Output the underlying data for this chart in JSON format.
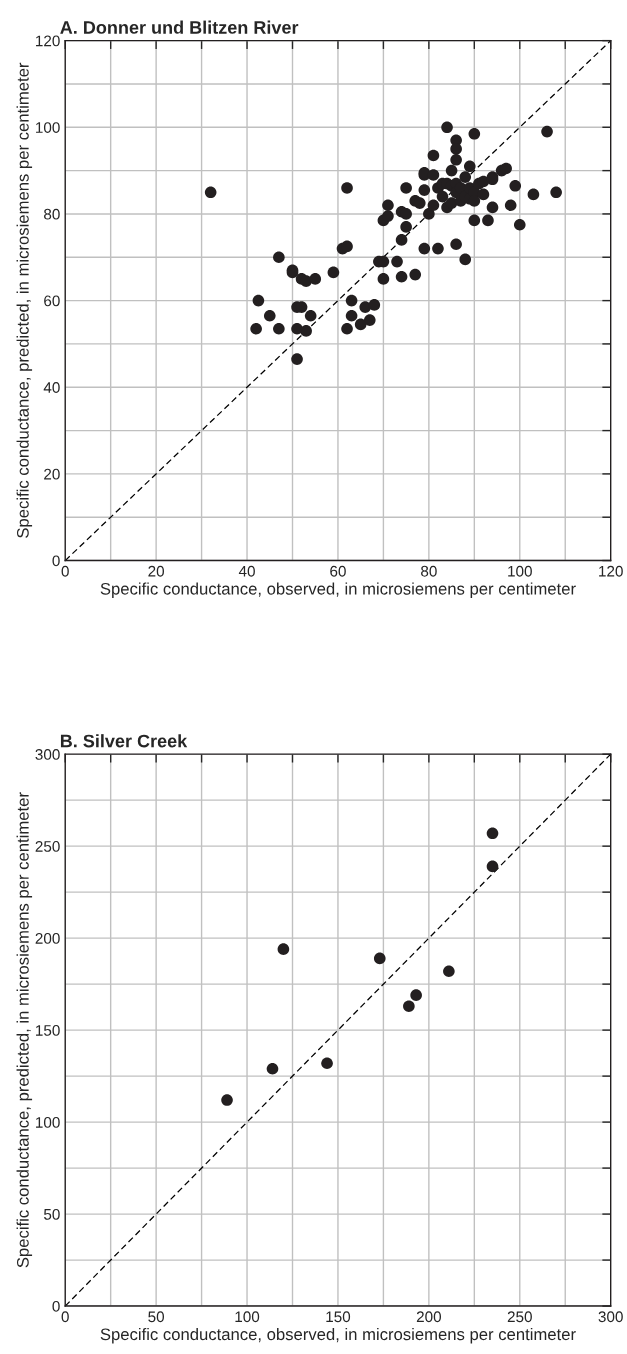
{
  "chart_data": [
    {
      "type": "scatter",
      "title": "A. Donner und Blitzen River",
      "xlabel": "Specific conductance, observed, in microsiemens per centimeter",
      "ylabel": "Specific conductance, predicted, in microsiemens per centimeter",
      "xlim": [
        0,
        120
      ],
      "ylim": [
        0,
        120
      ],
      "xticks": [
        0,
        {
          "value": 10,
          "label": null
        },
        20,
        {
          "value": 30,
          "label": null
        },
        40,
        {
          "value": 50,
          "label": null
        },
        60,
        {
          "value": 70,
          "label": null
        },
        80,
        {
          "value": 90,
          "label": null
        },
        100,
        {
          "value": 110,
          "label": null
        },
        120
      ],
      "yticks": [
        0,
        {
          "value": 10,
          "label": null
        },
        20,
        {
          "value": 30,
          "label": null
        },
        40,
        {
          "value": 50,
          "label": null
        },
        60,
        {
          "value": 70,
          "label": null
        },
        80,
        {
          "value": 90,
          "label": null
        },
        100,
        {
          "value": 110,
          "label": null
        },
        120
      ],
      "grid": true,
      "marker": "circle",
      "legend": false,
      "series": [
        {
          "color": "#231f20",
          "x": [
            32,
            42,
            42.5,
            45,
            47,
            47,
            50,
            50,
            51,
            51,
            51,
            52,
            52,
            53,
            53,
            54,
            55,
            59,
            61,
            62,
            62,
            62,
            63,
            63,
            65,
            66,
            67,
            68,
            69,
            70,
            70,
            70,
            71,
            71,
            73,
            74,
            74,
            74,
            75,
            75,
            75,
            77,
            77,
            78,
            79,
            79,
            79,
            79,
            80,
            81,
            81,
            81,
            82,
            82,
            83,
            83,
            84,
            84,
            84,
            85,
            85,
            85,
            86,
            86,
            86,
            86,
            86,
            86,
            87,
            87,
            88,
            88,
            88,
            89,
            89,
            89,
            90,
            90,
            90,
            90,
            91,
            92,
            92,
            93,
            94,
            94,
            94,
            96,
            97,
            98,
            99,
            100,
            103,
            106,
            108
          ],
          "values": [
            85,
            53.5,
            60,
            56.5,
            53.5,
            70,
            67,
            66.5,
            58.5,
            53.5,
            46.5,
            65,
            58.5,
            53,
            64.5,
            56.5,
            65,
            66.5,
            72,
            72.5,
            86,
            53.5,
            60,
            56.5,
            54.5,
            58.5,
            55.5,
            59,
            69,
            69,
            65,
            78.5,
            79.5,
            82,
            69,
            74,
            65.5,
            80.5,
            80,
            77,
            86,
            66,
            83,
            82.5,
            72,
            85.5,
            89,
            89.5,
            80,
            93.5,
            82,
            89,
            72,
            86,
            87,
            84,
            100,
            81.5,
            87,
            82.5,
            90,
            86.5,
            97,
            95,
            92.5,
            87,
            85,
            73,
            86,
            83,
            88.5,
            84,
            69.5,
            91,
            86,
            83.5,
            98.5,
            85,
            78.5,
            83,
            87,
            87.5,
            84.5,
            78.5,
            81.5,
            88.5,
            88,
            90,
            90.5,
            82,
            86.5,
            77.5,
            84.5,
            99,
            85
          ]
        },
        {
          "type": "line",
          "color": "#000000",
          "line_style": "dashed",
          "marker": "none",
          "x": [
            0,
            120
          ],
          "values": [
            0,
            120
          ]
        }
      ]
    },
    {
      "type": "scatter",
      "title": "B. Silver Creek",
      "xlabel": "Specific conductance, observed, in microsiemens per centimeter",
      "ylabel": "Specific conductance, predicted, in microsiemens per centimeter",
      "xlim": [
        0,
        300
      ],
      "ylim": [
        0,
        300
      ],
      "xticks": [
        0,
        {
          "value": 25,
          "label": null
        },
        50,
        {
          "value": 75,
          "label": null
        },
        100,
        {
          "value": 125,
          "label": null
        },
        150,
        {
          "value": 175,
          "label": null
        },
        200,
        {
          "value": 225,
          "label": null
        },
        250,
        {
          "value": 275,
          "label": null
        },
        300
      ],
      "yticks": [
        0,
        {
          "value": 25,
          "label": null
        },
        50,
        {
          "value": 75,
          "label": null
        },
        100,
        {
          "value": 125,
          "label": null
        },
        150,
        {
          "value": 175,
          "label": null
        },
        200,
        {
          "value": 225,
          "label": null
        },
        250,
        {
          "value": 275,
          "label": null
        },
        300
      ],
      "grid": true,
      "marker": "circle",
      "legend": false,
      "series": [
        {
          "color": "#231f20",
          "x": [
            89,
            114,
            120,
            144,
            173,
            189,
            193,
            211,
            235,
            235
          ],
          "values": [
            112,
            129,
            194,
            132,
            189,
            163,
            169,
            182,
            257,
            239
          ]
        },
        {
          "type": "line",
          "color": "#000000",
          "line_style": "dashed",
          "marker": "none",
          "x": [
            0,
            300
          ],
          "values": [
            0,
            300
          ]
        }
      ]
    }
  ]
}
